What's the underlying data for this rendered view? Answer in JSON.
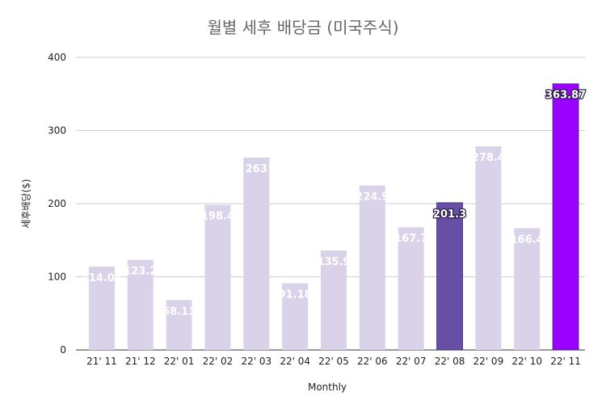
{
  "chart_data": {
    "type": "bar",
    "title": "월별 세후 배당금 (미국주식)",
    "xlabel": "Monthly",
    "ylabel": "세후배당($)",
    "ylim": [
      0,
      400
    ],
    "yticks": [
      0,
      100,
      200,
      300,
      400
    ],
    "grid": true,
    "categories": [
      "21' 11",
      "21' 12",
      "22' 01",
      "22' 02",
      "22' 03",
      "22' 04",
      "22' 05",
      "22' 06",
      "22' 07",
      "22' 08",
      "22' 09",
      "22' 10",
      "22' 11"
    ],
    "values": [
      114.04,
      123.2,
      68.11,
      198.4,
      263,
      91.18,
      135.9,
      224.9,
      167.7,
      201.3,
      278.4,
      166.4,
      363.87
    ],
    "data_labels": [
      "114.04",
      "123.2",
      "68.11",
      "198.4",
      "263",
      "91.18",
      "135.9",
      "224.9",
      "167.7",
      "201.3",
      "278.4",
      "166.4",
      "363.87"
    ],
    "colors": {
      "default": "#d9d2e9",
      "highlight_1": "#674ea7",
      "highlight_2": "#9900ff",
      "grid": "#cccccc",
      "axis": "#333333"
    },
    "bar_colors": [
      "#d9d2e9",
      "#d9d2e9",
      "#d9d2e9",
      "#d9d2e9",
      "#d9d2e9",
      "#d9d2e9",
      "#d9d2e9",
      "#d9d2e9",
      "#d9d2e9",
      "#674ea7",
      "#d9d2e9",
      "#d9d2e9",
      "#9900ff"
    ]
  }
}
